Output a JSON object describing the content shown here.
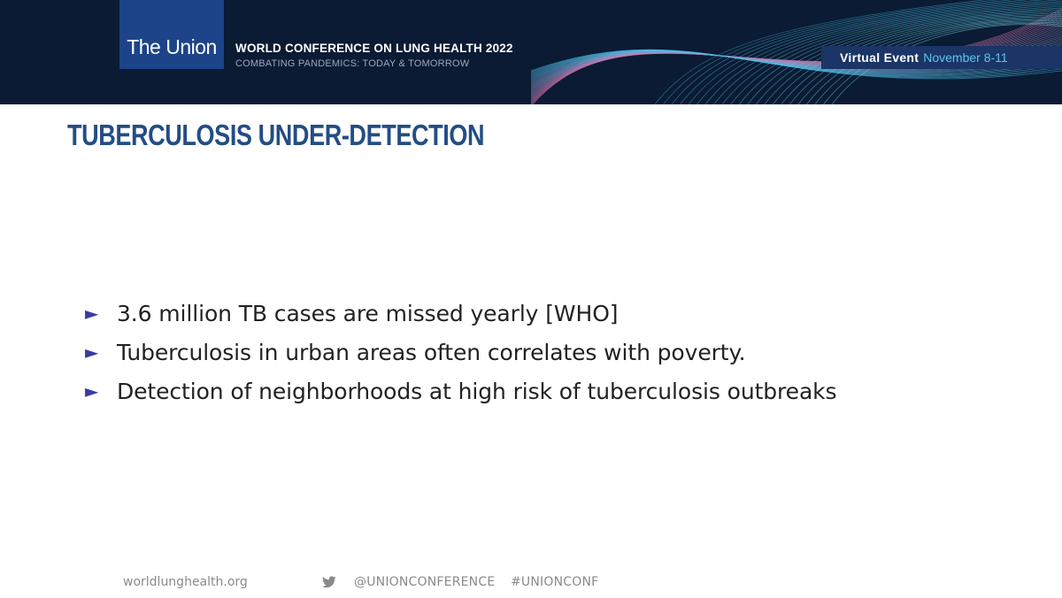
{
  "header": {
    "logo_text": "The Union",
    "conference_title": "WORLD CONFERENCE ON LUNG HEALTH 2022",
    "conference_subtitle": "COMBATING PANDEMICS: TODAY & TOMORROW",
    "event_label": "Virtual Event",
    "event_dates": "November 8-11"
  },
  "slide": {
    "title": "TUBERCULOSIS UNDER-DETECTION",
    "bullets": [
      {
        "icon": "triangle-right-icon",
        "text": "3.6 million TB cases are missed yearly [WHO]"
      },
      {
        "icon": "triangle-right-icon",
        "text": "Tuberculosis in urban areas often correlates with poverty."
      },
      {
        "icon": "triangle-right-icon",
        "text": "Detection of neighborhoods at high risk of tuberculosis outbreaks"
      }
    ]
  },
  "footer": {
    "website": "worldlunghealth.org",
    "twitter_icon": "twitter-bird-icon",
    "twitter_handle": "@UNIONCONFERENCE",
    "hashtag": "#UNIONCONF"
  },
  "colors": {
    "banner_bg": "#0b1b33",
    "logo_bg": "#1d4389",
    "event_bar_bg": "#1a3566",
    "event_date": "#5cc6ee",
    "title": "#234d84",
    "bullet_arrow": "#3a3aa8",
    "body_text": "#222222",
    "footer_text": "#8a8a8a"
  }
}
